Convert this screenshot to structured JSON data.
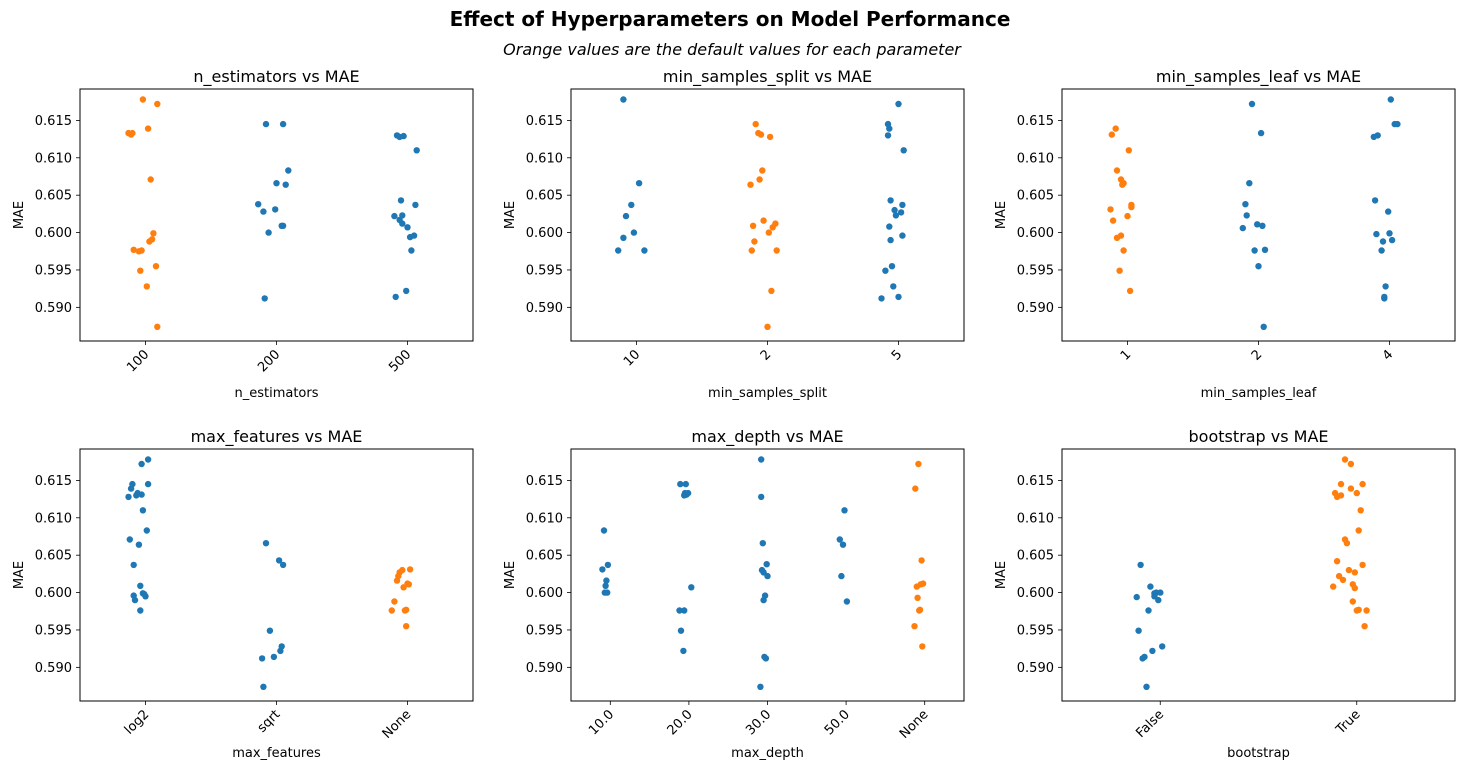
{
  "figure": {
    "title": "Effect of Hyperparameters on Model Performance",
    "subtitle": "Orange values are the default values for each parameter"
  },
  "colors": {
    "default": "#ff7f0e",
    "other": "#1f77b4"
  },
  "chart_data": [
    {
      "type": "scatter",
      "title": "n_estimators vs MAE",
      "xlabel": "n_estimators",
      "ylabel": "MAE",
      "ylim": [
        0.5855,
        0.6192
      ],
      "yticks": [
        "0.590",
        "0.595",
        "0.600",
        "0.605",
        "0.610",
        "0.615"
      ],
      "categories": [
        "100",
        "200",
        "500"
      ],
      "default_category": "100",
      "points": [
        [
          [
            -0.13,
            0.6133
          ],
          [
            -0.11,
            0.6131
          ],
          [
            -0.1,
            0.6133
          ],
          [
            -0.09,
            0.5977
          ],
          [
            -0.05,
            0.5975
          ],
          [
            -0.04,
            0.5949
          ],
          [
            -0.03,
            0.5976
          ],
          [
            -0.02,
            0.6178
          ],
          [
            0.01,
            0.5928
          ],
          [
            0.02,
            0.6139
          ],
          [
            0.03,
            0.5988
          ],
          [
            0.04,
            0.6071
          ],
          [
            0.05,
            0.5991
          ],
          [
            0.06,
            0.5999
          ],
          [
            0.08,
            0.5955
          ],
          [
            0.09,
            0.6172
          ],
          [
            0.09,
            0.5874
          ]
        ],
        [
          [
            -0.14,
            0.6038
          ],
          [
            -0.1,
            0.6028
          ],
          [
            -0.08,
            0.6145
          ],
          [
            -0.09,
            0.5912
          ],
          [
            -0.06,
            0.6
          ],
          [
            -0.01,
            0.6031
          ],
          [
            0.0,
            0.6066
          ],
          [
            0.04,
            0.6009
          ],
          [
            0.05,
            0.6009
          ],
          [
            0.05,
            0.6145
          ],
          [
            0.07,
            0.6064
          ],
          [
            0.09,
            0.6083
          ]
        ],
        [
          [
            -0.1,
            0.6022
          ],
          [
            -0.09,
            0.5914
          ],
          [
            -0.08,
            0.613
          ],
          [
            -0.06,
            0.6017
          ],
          [
            -0.06,
            0.6128
          ],
          [
            -0.05,
            0.6043
          ],
          [
            -0.04,
            0.6023
          ],
          [
            -0.04,
            0.6012
          ],
          [
            -0.03,
            0.6129
          ],
          [
            -0.01,
            0.5922
          ],
          [
            0.0,
            0.6007
          ],
          [
            0.02,
            0.5994
          ],
          [
            0.03,
            0.5976
          ],
          [
            0.05,
            0.5996
          ],
          [
            0.06,
            0.6037
          ],
          [
            0.07,
            0.611
          ]
        ]
      ]
    },
    {
      "type": "scatter",
      "title": "min_samples_split vs MAE",
      "xlabel": "min_samples_split",
      "ylabel": "MAE",
      "ylim": [
        0.5855,
        0.6192
      ],
      "yticks": [
        "0.590",
        "0.595",
        "0.600",
        "0.605",
        "0.610",
        "0.615"
      ],
      "categories": [
        "10",
        "2",
        "5"
      ],
      "default_category": "2",
      "points": [
        [
          [
            -0.14,
            0.5976
          ],
          [
            -0.1,
            0.6178
          ],
          [
            -0.1,
            0.5993
          ],
          [
            -0.08,
            0.6022
          ],
          [
            -0.04,
            0.6037
          ],
          [
            -0.02,
            0.6
          ],
          [
            0.02,
            0.6066
          ],
          [
            0.06,
            0.5976
          ]
        ],
        [
          [
            -0.13,
            0.6064
          ],
          [
            -0.12,
            0.5976
          ],
          [
            -0.11,
            0.6009
          ],
          [
            -0.1,
            0.5988
          ],
          [
            -0.09,
            0.6145
          ],
          [
            -0.07,
            0.6133
          ],
          [
            -0.06,
            0.6071
          ],
          [
            -0.05,
            0.6131
          ],
          [
            -0.04,
            0.6083
          ],
          [
            -0.03,
            0.6016
          ],
          [
            0.0,
            0.5874
          ],
          [
            0.01,
            0.6
          ],
          [
            0.02,
            0.6128
          ],
          [
            0.03,
            0.5922
          ],
          [
            0.04,
            0.6007
          ],
          [
            0.06,
            0.6012
          ],
          [
            0.07,
            0.5976
          ]
        ],
        [
          [
            -0.13,
            0.5912
          ],
          [
            -0.1,
            0.5949
          ],
          [
            -0.08,
            0.613
          ],
          [
            -0.08,
            0.6145
          ],
          [
            -0.07,
            0.6139
          ],
          [
            -0.07,
            0.6008
          ],
          [
            -0.06,
            0.599
          ],
          [
            -0.06,
            0.6043
          ],
          [
            -0.05,
            0.5955
          ],
          [
            -0.04,
            0.5928
          ],
          [
            -0.03,
            0.603
          ],
          [
            -0.02,
            0.6023
          ],
          [
            0.0,
            0.6172
          ],
          [
            0.0,
            0.5914
          ],
          [
            0.02,
            0.6027
          ],
          [
            0.03,
            0.6037
          ],
          [
            0.03,
            0.5996
          ],
          [
            0.04,
            0.611
          ]
        ]
      ]
    },
    {
      "type": "scatter",
      "title": "min_samples_leaf vs MAE",
      "xlabel": "min_samples_leaf",
      "ylabel": "MAE",
      "ylim": [
        0.5855,
        0.6192
      ],
      "yticks": [
        "0.590",
        "0.595",
        "0.600",
        "0.605",
        "0.610",
        "0.615"
      ],
      "categories": [
        "1",
        "2",
        "4"
      ],
      "default_category": "1",
      "points": [
        [
          [
            -0.13,
            0.6031
          ],
          [
            -0.12,
            0.6131
          ],
          [
            -0.11,
            0.6016
          ],
          [
            -0.09,
            0.6139
          ],
          [
            -0.08,
            0.6083
          ],
          [
            -0.08,
            0.5993
          ],
          [
            -0.06,
            0.5949
          ],
          [
            -0.05,
            0.6071
          ],
          [
            -0.05,
            0.5996
          ],
          [
            -0.04,
            0.6064
          ],
          [
            -0.03,
            0.5976
          ],
          [
            -0.03,
            0.6066
          ],
          [
            0.0,
            0.6022
          ],
          [
            0.01,
            0.611
          ],
          [
            0.02,
            0.5922
          ],
          [
            0.03,
            0.6037
          ],
          [
            0.03,
            0.6034
          ]
        ],
        [
          [
            -0.12,
            0.6006
          ],
          [
            -0.1,
            0.6038
          ],
          [
            -0.09,
            0.6023
          ],
          [
            -0.07,
            0.6066
          ],
          [
            -0.05,
            0.6172
          ],
          [
            -0.03,
            0.5976
          ],
          [
            -0.01,
            0.6011
          ],
          [
            0.0,
            0.5955
          ],
          [
            0.02,
            0.6133
          ],
          [
            0.03,
            0.6009
          ],
          [
            0.04,
            0.5874
          ],
          [
            0.05,
            0.5977
          ]
        ],
        [
          [
            -0.12,
            0.6128
          ],
          [
            -0.11,
            0.6043
          ],
          [
            -0.1,
            0.5998
          ],
          [
            -0.09,
            0.613
          ],
          [
            -0.06,
            0.5976
          ],
          [
            -0.05,
            0.5988
          ],
          [
            -0.04,
            0.5912
          ],
          [
            -0.04,
            0.5914
          ],
          [
            -0.03,
            0.5928
          ],
          [
            -0.01,
            0.6028
          ],
          [
            0.0,
            0.5999
          ],
          [
            0.01,
            0.6178
          ],
          [
            0.02,
            0.599
          ],
          [
            0.04,
            0.6145
          ],
          [
            0.06,
            0.6145
          ]
        ]
      ]
    },
    {
      "type": "scatter",
      "title": "max_features vs MAE",
      "xlabel": "max_features",
      "ylabel": "MAE",
      "ylim": [
        0.5855,
        0.6192
      ],
      "yticks": [
        "0.590",
        "0.595",
        "0.600",
        "0.605",
        "0.610",
        "0.615"
      ],
      "categories": [
        "log2",
        "sqrt",
        "None"
      ],
      "default_category": "None",
      "points": [
        [
          [
            -0.13,
            0.6128
          ],
          [
            -0.12,
            0.6071
          ],
          [
            -0.11,
            0.6139
          ],
          [
            -0.1,
            0.6145
          ],
          [
            -0.09,
            0.6037
          ],
          [
            -0.09,
            0.5996
          ],
          [
            -0.08,
            0.599
          ],
          [
            -0.07,
            0.613
          ],
          [
            -0.06,
            0.6133
          ],
          [
            -0.05,
            0.6064
          ],
          [
            -0.04,
            0.6009
          ],
          [
            -0.04,
            0.5976
          ],
          [
            -0.03,
            0.6131
          ],
          [
            -0.03,
            0.6172
          ],
          [
            -0.02,
            0.5999
          ],
          [
            -0.02,
            0.611
          ],
          [
            -0.01,
            0.5998
          ],
          [
            0.0,
            0.5995
          ],
          [
            0.01,
            0.6083
          ],
          [
            0.02,
            0.6178
          ],
          [
            0.02,
            0.6145
          ]
        ],
        [
          [
            -0.11,
            0.5912
          ],
          [
            -0.1,
            0.5874
          ],
          [
            -0.08,
            0.6066
          ],
          [
            -0.05,
            0.5949
          ],
          [
            -0.02,
            0.5914
          ],
          [
            0.02,
            0.6043
          ],
          [
            0.03,
            0.5922
          ],
          [
            0.04,
            0.5928
          ],
          [
            0.05,
            0.6037
          ]
        ],
        [
          [
            -0.12,
            0.5976
          ],
          [
            -0.1,
            0.5988
          ],
          [
            -0.08,
            0.6016
          ],
          [
            -0.07,
            0.6022
          ],
          [
            -0.06,
            0.6027
          ],
          [
            -0.04,
            0.603
          ],
          [
            -0.03,
            0.6007
          ],
          [
            -0.02,
            0.5976
          ],
          [
            -0.01,
            0.5977
          ],
          [
            -0.01,
            0.5955
          ],
          [
            0.0,
            0.6012
          ],
          [
            0.01,
            0.6011
          ],
          [
            0.02,
            0.6031
          ]
        ]
      ]
    },
    {
      "type": "scatter",
      "title": "max_depth vs MAE",
      "xlabel": "max_depth",
      "ylabel": "MAE",
      "ylim": [
        0.5855,
        0.6192
      ],
      "yticks": [
        "0.590",
        "0.595",
        "0.600",
        "0.605",
        "0.610",
        "0.615"
      ],
      "categories": [
        "10.0",
        "20.0",
        "30.0",
        "50.0",
        "None"
      ],
      "default_category": "None",
      "points": [
        [
          [
            -0.1,
            0.6031
          ],
          [
            -0.08,
            0.6083
          ],
          [
            -0.07,
            0.6
          ],
          [
            -0.06,
            0.6009
          ],
          [
            -0.05,
            0.6016
          ],
          [
            -0.04,
            0.6
          ],
          [
            -0.03,
            0.6037
          ]
        ],
        [
          [
            -0.12,
            0.5976
          ],
          [
            -0.11,
            0.6145
          ],
          [
            -0.1,
            0.5949
          ],
          [
            -0.07,
            0.5922
          ],
          [
            -0.06,
            0.5976
          ],
          [
            -0.06,
            0.613
          ],
          [
            -0.05,
            0.6133
          ],
          [
            -0.04,
            0.6145
          ],
          [
            -0.03,
            0.6131
          ],
          [
            -0.01,
            0.6133
          ],
          [
            0.03,
            0.6007
          ]
        ],
        [
          [
            -0.09,
            0.5874
          ],
          [
            -0.08,
            0.6178
          ],
          [
            -0.08,
            0.6128
          ],
          [
            -0.07,
            0.603
          ],
          [
            -0.06,
            0.6066
          ],
          [
            -0.05,
            0.599
          ],
          [
            -0.05,
            0.6027
          ],
          [
            -0.04,
            0.5914
          ],
          [
            -0.03,
            0.5996
          ],
          [
            -0.02,
            0.5912
          ],
          [
            -0.01,
            0.6038
          ],
          [
            0.0,
            0.6022
          ]
        ],
        [
          [
            -0.08,
            0.6071
          ],
          [
            -0.06,
            0.6022
          ],
          [
            -0.04,
            0.6064
          ],
          [
            -0.02,
            0.611
          ],
          [
            0.01,
            0.5988
          ]
        ],
        [
          [
            -0.13,
            0.5955
          ],
          [
            -0.12,
            0.6139
          ],
          [
            -0.1,
            0.6008
          ],
          [
            -0.09,
            0.5993
          ],
          [
            -0.08,
            0.6172
          ],
          [
            -0.07,
            0.5976
          ],
          [
            -0.06,
            0.5977
          ],
          [
            -0.05,
            0.6011
          ],
          [
            -0.04,
            0.6043
          ],
          [
            -0.03,
            0.5928
          ],
          [
            -0.02,
            0.6012
          ]
        ]
      ]
    },
    {
      "type": "scatter",
      "title": "bootstrap vs MAE",
      "xlabel": "bootstrap",
      "ylabel": "MAE",
      "ylim": [
        0.5855,
        0.6192
      ],
      "yticks": [
        "0.590",
        "0.595",
        "0.600",
        "0.605",
        "0.610",
        "0.615"
      ],
      "categories": [
        "False",
        "True"
      ],
      "default_category": "True",
      "points": [
        [
          [
            -0.12,
            0.5994
          ],
          [
            -0.11,
            0.5949
          ],
          [
            -0.1,
            0.6037
          ],
          [
            -0.09,
            0.5912
          ],
          [
            -0.08,
            0.5914
          ],
          [
            -0.07,
            0.5874
          ],
          [
            -0.06,
            0.5976
          ],
          [
            -0.05,
            0.6008
          ],
          [
            -0.04,
            0.5922
          ],
          [
            -0.03,
            0.5995
          ],
          [
            -0.03,
            0.5999
          ],
          [
            -0.02,
            0.6
          ],
          [
            -0.01,
            0.599
          ],
          [
            0.0,
            0.6
          ],
          [
            0.01,
            0.5928
          ]
        ],
        [
          [
            -0.12,
            0.6008
          ],
          [
            -0.11,
            0.6133
          ],
          [
            -0.1,
            0.6042
          ],
          [
            -0.1,
            0.6128
          ],
          [
            -0.09,
            0.6022
          ],
          [
            -0.08,
            0.6145
          ],
          [
            -0.08,
            0.613
          ],
          [
            -0.07,
            0.6017
          ],
          [
            -0.06,
            0.6178
          ],
          [
            -0.06,
            0.6071
          ],
          [
            -0.05,
            0.6066
          ],
          [
            -0.04,
            0.603
          ],
          [
            -0.03,
            0.6172
          ],
          [
            -0.03,
            0.6139
          ],
          [
            -0.02,
            0.6011
          ],
          [
            -0.02,
            0.5988
          ],
          [
            -0.01,
            0.6027
          ],
          [
            -0.01,
            0.6006
          ],
          [
            0.0,
            0.6133
          ],
          [
            0.0,
            0.5976
          ],
          [
            0.01,
            0.6083
          ],
          [
            0.01,
            0.5977
          ],
          [
            0.02,
            0.611
          ],
          [
            0.03,
            0.6145
          ],
          [
            0.03,
            0.6037
          ],
          [
            0.04,
            0.5955
          ],
          [
            0.05,
            0.5976
          ]
        ]
      ]
    }
  ]
}
